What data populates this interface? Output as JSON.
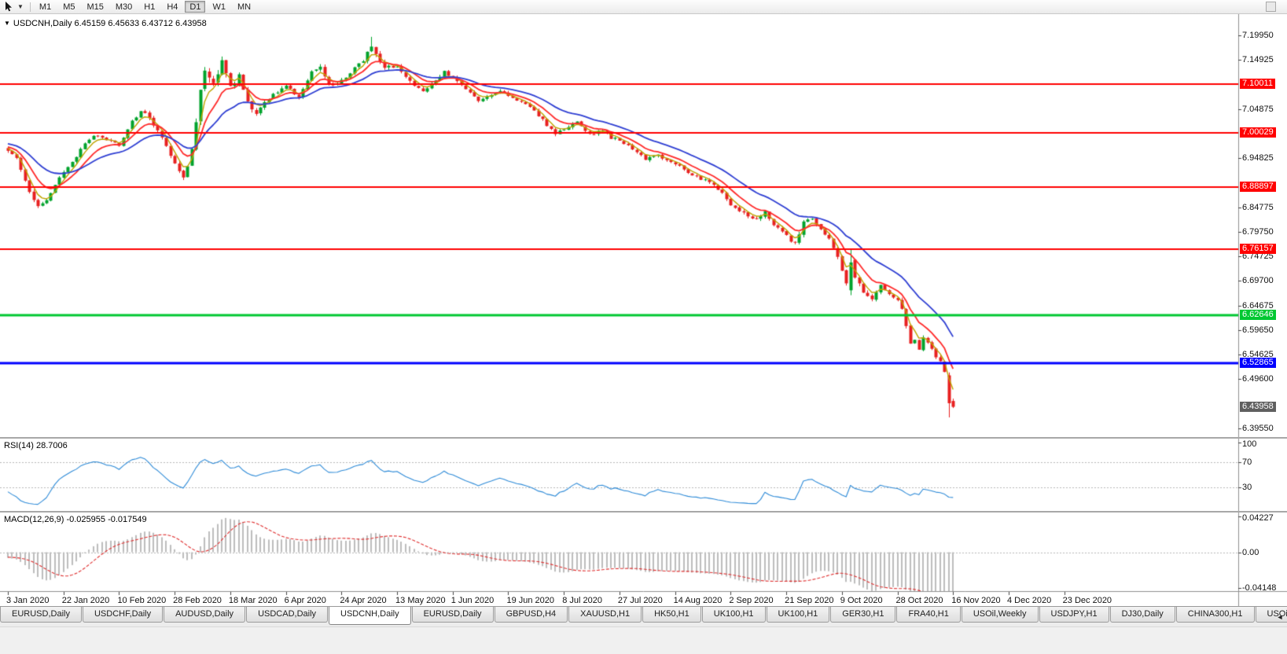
{
  "colors": {
    "candle_up": "#00A32C",
    "candle_down": "#E82020",
    "rsi": "#2E8BD8",
    "macd_hist": "#BDBDBD",
    "macd_signal": "#E03030",
    "axis_text": "#111111"
  },
  "toolbar": {
    "timeframes": [
      "M1",
      "M5",
      "M15",
      "M30",
      "H1",
      "H4",
      "D1",
      "W1",
      "MN"
    ],
    "active_timeframe": "D1"
  },
  "chart": {
    "header_text": "USDCNH,Daily 6.45159 6.45633 6.43712 6.43958",
    "symbol": "USDCNH",
    "timeframe": "Daily",
    "ohlc": {
      "open": "6.45159",
      "high": "6.45633",
      "low": "6.43712",
      "close": "6.43958"
    },
    "price_axis": {
      "ticks": [
        "7.19950",
        "7.14925",
        "7.04875",
        "6.94825",
        "6.84775",
        "6.79750",
        "6.74725",
        "6.69700",
        "6.64675",
        "6.59650",
        "6.54625",
        "6.49600",
        "6.39550"
      ],
      "line_labels": [
        {
          "text": "7.10011",
          "price": 7.10011,
          "color": "#FF0000",
          "type": "resistance-line"
        },
        {
          "text": "7.00029",
          "price": 7.00029,
          "color": "#FF0000",
          "type": "resistance-line"
        },
        {
          "text": "6.88897",
          "price": 6.88897,
          "color": "#FF0000",
          "type": "resistance-line"
        },
        {
          "text": "6.76157",
          "price": 6.76157,
          "color": "#FF0000",
          "type": "resistance-line"
        },
        {
          "text": "6.62646",
          "price": 6.62646,
          "color": "#00C832",
          "type": "support-line"
        },
        {
          "text": "6.52865",
          "price": 6.52865,
          "color": "#0000FF",
          "type": "support-line"
        },
        {
          "text": "6.43958",
          "price": 6.43958,
          "color": "#5F5F5F",
          "type": "bid"
        }
      ]
    },
    "time_axis": {
      "labels": [
        "3 Jan 2020",
        "22 Jan 2020",
        "10 Feb 2020",
        "28 Feb 2020",
        "18 Mar 2020",
        "6 Apr 2020",
        "24 Apr 2020",
        "13 May 2020",
        "1 Jun 2020",
        "19 Jun 2020",
        "8 Jul 2020",
        "27 Jul 2020",
        "14 Aug 2020",
        "2 Sep 2020",
        "21 Sep 2020",
        "9 Oct 2020",
        "28 Oct 2020",
        "16 Nov 2020",
        "4 Dec 2020",
        "23 Dec 2020"
      ],
      "label_interval_bars": 13
    }
  },
  "indicators": {
    "rsi": {
      "label": "RSI(14) 28.7006",
      "period": 14,
      "value": "28.7006",
      "levels": [
        {
          "text": "100",
          "value": 100
        },
        {
          "text": "70",
          "value": 70
        },
        {
          "text": "30",
          "value": 30
        }
      ]
    },
    "macd": {
      "label": "MACD(12,26,9) -0.025955 -0.017549",
      "fast": 12,
      "slow": 26,
      "signal": 9,
      "main_value": "-0.025955",
      "signal_value": "-0.017549",
      "axis_labels": [
        {
          "text": "0.04227",
          "value": 0.04227
        },
        {
          "text": "0.00",
          "value": 0
        },
        {
          "text": "-0.04148",
          "value": -0.04148
        }
      ]
    }
  },
  "chart_data": {
    "type": "candlestick",
    "title": "USDCNH Daily",
    "bars": 222,
    "ylim": [
      6.3778,
      7.2429
    ],
    "price_anchors": [
      [
        -40,
        6.99,
        0.009
      ],
      [
        -25,
        7.005,
        0.009
      ],
      [
        -12,
        6.978,
        0.009
      ],
      [
        -5,
        6.972,
        0.009
      ],
      [
        0,
        6.966,
        0.009
      ],
      [
        2,
        6.946,
        0.009
      ],
      [
        5,
        6.882,
        0.01
      ],
      [
        7,
        6.85,
        0.01
      ],
      [
        9,
        6.86,
        0.009
      ],
      [
        12,
        6.908,
        0.009
      ],
      [
        15,
        6.94,
        0.008
      ],
      [
        18,
        6.978,
        0.008
      ],
      [
        20,
        6.996,
        0.008
      ],
      [
        23,
        6.984,
        0.008
      ],
      [
        26,
        6.976,
        0.008
      ],
      [
        29,
        7.022,
        0.009
      ],
      [
        31,
        7.046,
        0.009
      ],
      [
        33,
        7.032,
        0.009
      ],
      [
        36,
        6.988,
        0.009
      ],
      [
        39,
        6.936,
        0.01
      ],
      [
        41,
        6.906,
        0.011
      ],
      [
        43,
        6.964,
        0.014
      ],
      [
        45,
        7.082,
        0.018
      ],
      [
        46,
        7.132,
        0.02
      ],
      [
        48,
        7.102,
        0.02
      ],
      [
        50,
        7.146,
        0.018
      ],
      [
        52,
        7.092,
        0.016
      ],
      [
        54,
        7.116,
        0.014
      ],
      [
        56,
        7.062,
        0.013
      ],
      [
        58,
        7.036,
        0.012
      ],
      [
        60,
        7.062,
        0.011
      ],
      [
        63,
        7.086,
        0.01
      ],
      [
        65,
        7.096,
        0.009
      ],
      [
        68,
        7.072,
        0.009
      ],
      [
        71,
        7.126,
        0.01
      ],
      [
        73,
        7.136,
        0.01
      ],
      [
        75,
        7.096,
        0.01
      ],
      [
        78,
        7.106,
        0.009
      ],
      [
        81,
        7.132,
        0.01
      ],
      [
        83,
        7.146,
        0.011
      ],
      [
        85,
        7.18,
        0.015
      ],
      [
        86,
        7.158,
        0.012
      ],
      [
        88,
        7.134,
        0.01
      ],
      [
        91,
        7.136,
        0.009
      ],
      [
        94,
        7.106,
        0.009
      ],
      [
        97,
        7.086,
        0.009
      ],
      [
        100,
        7.106,
        0.008
      ],
      [
        102,
        7.126,
        0.008
      ],
      [
        104,
        7.112,
        0.008
      ],
      [
        107,
        7.088,
        0.008
      ],
      [
        110,
        7.066,
        0.008
      ],
      [
        113,
        7.076,
        0.007
      ],
      [
        115,
        7.086,
        0.007
      ],
      [
        117,
        7.076,
        0.007
      ],
      [
        120,
        7.062,
        0.007
      ],
      [
        123,
        7.046,
        0.008
      ],
      [
        126,
        7.016,
        0.008
      ],
      [
        128,
        7.0,
        0.008
      ],
      [
        130,
        7.006,
        0.008
      ],
      [
        133,
        7.022,
        0.008
      ],
      [
        136,
        6.996,
        0.008
      ],
      [
        139,
        7.006,
        0.007
      ],
      [
        141,
        6.99,
        0.007
      ],
      [
        143,
        6.986,
        0.007
      ],
      [
        146,
        6.966,
        0.007
      ],
      [
        149,
        6.946,
        0.007
      ],
      [
        152,
        6.956,
        0.007
      ],
      [
        154,
        6.942,
        0.007
      ],
      [
        156,
        6.936,
        0.007
      ],
      [
        159,
        6.92,
        0.007
      ],
      [
        162,
        6.906,
        0.007
      ],
      [
        165,
        6.896,
        0.008
      ],
      [
        167,
        6.876,
        0.009
      ],
      [
        169,
        6.852,
        0.01
      ],
      [
        172,
        6.836,
        0.01
      ],
      [
        175,
        6.822,
        0.01
      ],
      [
        177,
        6.842,
        0.01
      ],
      [
        179,
        6.812,
        0.01
      ],
      [
        182,
        6.788,
        0.01
      ],
      [
        184,
        6.772,
        0.011
      ],
      [
        186,
        6.816,
        0.011
      ],
      [
        188,
        6.826,
        0.01
      ],
      [
        190,
        6.802,
        0.009
      ],
      [
        192,
        6.782,
        0.009
      ],
      [
        194,
        6.748,
        0.01
      ],
      [
        196,
        6.692,
        0.012
      ],
      [
        197,
        6.736,
        0.02
      ],
      [
        198,
        6.702,
        0.013
      ],
      [
        200,
        6.676,
        0.01
      ],
      [
        202,
        6.662,
        0.009
      ],
      [
        204,
        6.686,
        0.009
      ],
      [
        206,
        6.672,
        0.008
      ],
      [
        208,
        6.656,
        0.009
      ],
      [
        209,
        6.64,
        0.01
      ],
      [
        210,
        6.602,
        0.014
      ],
      [
        211,
        6.566,
        0.013
      ],
      [
        212,
        6.576,
        0.01
      ],
      [
        213,
        6.556,
        0.009
      ],
      [
        214,
        6.58,
        0.009
      ],
      [
        215,
        6.57,
        0.008
      ],
      [
        216,
        6.556,
        0.008
      ],
      [
        217,
        6.542,
        0.008
      ],
      [
        218,
        6.532,
        0.008
      ],
      [
        219,
        6.508,
        0.01
      ],
      [
        220,
        6.448,
        0.022
      ],
      [
        221,
        6.4396,
        0.006
      ]
    ],
    "feature_bars": [
      {
        "i": 85,
        "h": 7.1965
      },
      {
        "i": 197,
        "o": 6.678,
        "h": 6.7615,
        "l": 6.668,
        "c": 6.735
      },
      {
        "i": 220,
        "o": 6.504,
        "h": 6.51,
        "l": 6.418,
        "c": 6.447
      }
    ],
    "last_bar": {
      "open": 6.45159,
      "high": 6.45633,
      "low": 6.43712,
      "close": 6.43958
    },
    "horizontal_lines": [
      {
        "price": 7.10011,
        "color": "#FF0000",
        "width": 2
      },
      {
        "price": 7.00029,
        "color": "#FF0000",
        "width": 2
      },
      {
        "price": 6.88897,
        "color": "#FF0000",
        "width": 2
      },
      {
        "price": 6.76157,
        "color": "#FF0000",
        "width": 2
      },
      {
        "price": 6.62646,
        "color": "#00C832",
        "width": 3
      },
      {
        "price": 6.52865,
        "color": "#0000FF",
        "width": 3
      }
    ],
    "moving_averages": [
      {
        "type": "ema",
        "period": 4,
        "color": "#BFA400",
        "width": 1.4
      },
      {
        "type": "ema",
        "period": 9,
        "color": "#FF2A2A",
        "width": 1.8
      },
      {
        "type": "ema",
        "period": 21,
        "color": "#2F3FD3",
        "width": 1.8
      }
    ],
    "x_label_interval": 13
  },
  "tabs": {
    "items": [
      {
        "label": "EURUSD,Daily",
        "active": false
      },
      {
        "label": "USDCHF,Daily",
        "active": false
      },
      {
        "label": "AUDUSD,Daily",
        "active": false
      },
      {
        "label": "USDCAD,Daily",
        "active": false
      },
      {
        "label": "USDCNH,Daily",
        "active": true
      },
      {
        "label": "EURUSD,Daily",
        "active": false
      },
      {
        "label": "GBPUSD,H4",
        "active": false
      },
      {
        "label": "XAUUSD,H1",
        "active": false
      },
      {
        "label": "HK50,H1",
        "active": false
      },
      {
        "label": "UK100,H1",
        "active": false
      },
      {
        "label": "UK100,H1",
        "active": false
      },
      {
        "label": "GER30,H1",
        "active": false
      },
      {
        "label": "FRA40,H1",
        "active": false
      },
      {
        "label": "USOil,Weekly",
        "active": false
      },
      {
        "label": "USDJPY,H1",
        "active": false
      },
      {
        "label": "DJ30,Daily",
        "active": false
      },
      {
        "label": "CHINA300,H1",
        "active": false
      },
      {
        "label": "USOil,",
        "active": false
      }
    ],
    "scroll_icon": "◄"
  }
}
